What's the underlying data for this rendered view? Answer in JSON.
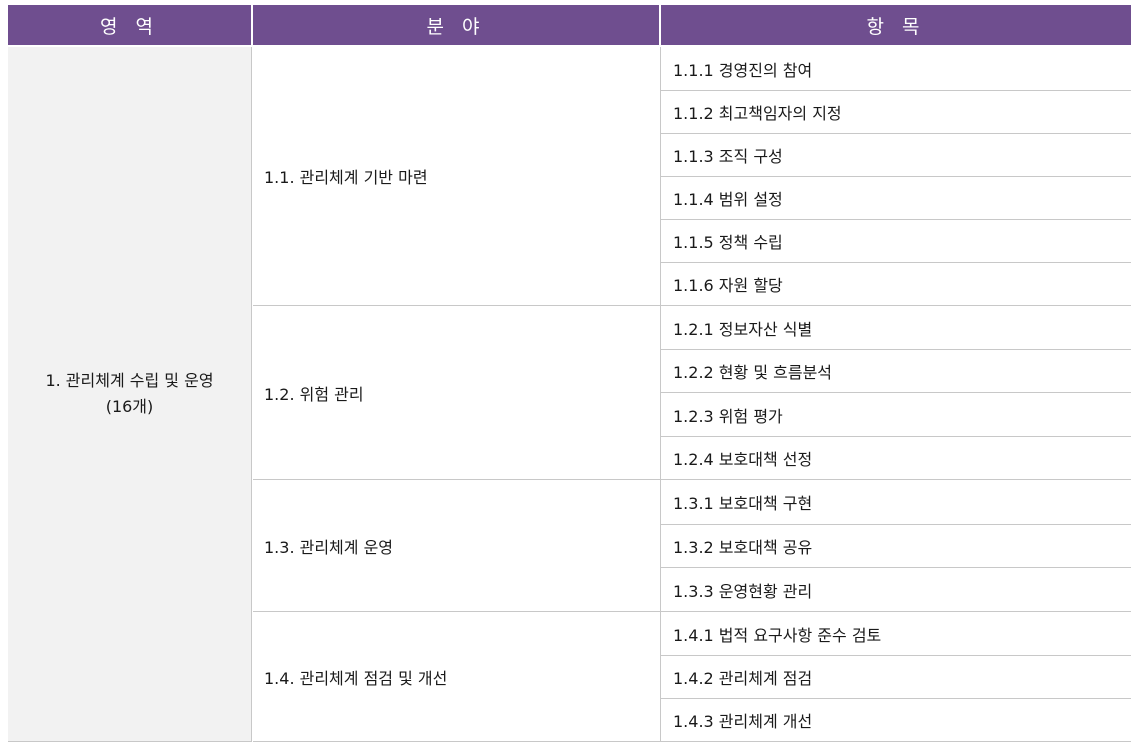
{
  "headers": [
    "영 역",
    "분 야",
    "항 목"
  ],
  "area": {
    "label_line1": "1. 관리체계 수립 및  운영",
    "label_line2": "(16개)"
  },
  "fields": [
    {
      "label": "1.1. 관리체계 기반 마련",
      "items": [
        "1.1.1 경영진의 참여",
        "1.1.2 최고책임자의 지정",
        "1.1.3 조직 구성",
        "1.1.4 범위 설정",
        "1.1.5 정책 수립",
        "1.1.6 자원 할당"
      ]
    },
    {
      "label": "1.2. 위험 관리",
      "items": [
        "1.2.1 정보자산 식별",
        "1.2.2 현황 및 흐름분석",
        "1.2.3 위험 평가",
        "1.2.4 보호대책 선정"
      ]
    },
    {
      "label": "1.3. 관리체계 운영",
      "items": [
        "1.3.1 보호대책 구현",
        "1.3.2 보호대책 공유",
        "1.3.3 운영현황 관리"
      ]
    },
    {
      "label": "1.4. 관리체계 점검 및 개선",
      "items": [
        "1.4.1 법적 요구사항 준수 검토",
        "1.4.2 관리체계 점검",
        "1.4.3 관리체계 개선"
      ]
    }
  ]
}
